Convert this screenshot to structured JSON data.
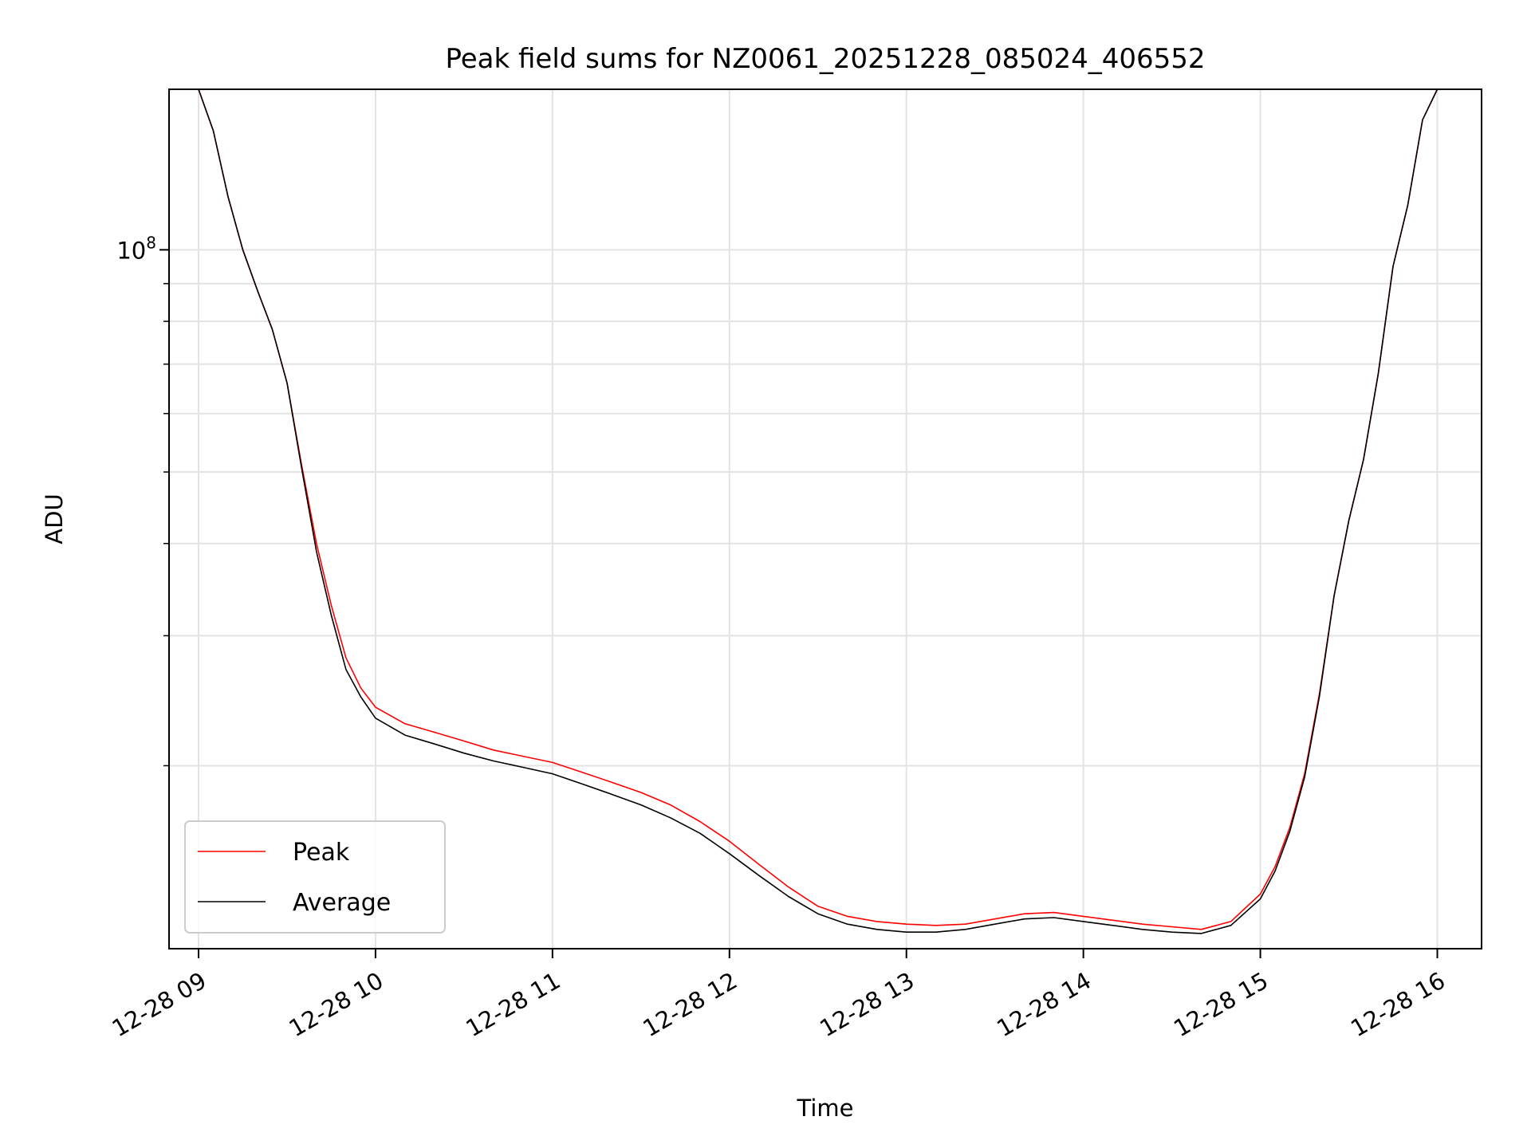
{
  "chart_data": {
    "type": "line",
    "title": "Peak field sums for NZ0061_20251228_085024_406552",
    "xlabel": "Time",
    "ylabel": "ADU",
    "y_scale": "log",
    "y_tick_labels": [
      {
        "base": "10",
        "exp": "8"
      }
    ],
    "x_tick_labels": [
      "12-28 09",
      "12-28 10",
      "12-28 11",
      "12-28 12",
      "12-28 13",
      "12-28 14",
      "12-28 15",
      "12-28 16"
    ],
    "x_tick_rotation_deg": 30,
    "grid": true,
    "legend_position": "lower-left",
    "x_range": [
      "2025-12-28 08:50",
      "2025-12-28 16:15"
    ],
    "ylim": [
      11300000,
      165000000
    ],
    "series": [
      {
        "name": "Peak",
        "color": "#ff0000",
        "points": [
          [
            "2025-12-28 09:00",
            165000000
          ],
          [
            "2025-12-28 09:05",
            145000000
          ],
          [
            "2025-12-28 09:10",
            118000000
          ],
          [
            "2025-12-28 09:15",
            100000000
          ],
          [
            "2025-12-28 09:20",
            88000000
          ],
          [
            "2025-12-28 09:25",
            78000000
          ],
          [
            "2025-12-28 09:30",
            66000000
          ],
          [
            "2025-12-28 09:35",
            51000000
          ],
          [
            "2025-12-28 09:40",
            40000000
          ],
          [
            "2025-12-28 09:45",
            33000000
          ],
          [
            "2025-12-28 09:50",
            28000000
          ],
          [
            "2025-12-28 09:55",
            25500000
          ],
          [
            "2025-12-28 10:00",
            24000000
          ],
          [
            "2025-12-28 10:10",
            22800000
          ],
          [
            "2025-12-28 10:20",
            22200000
          ],
          [
            "2025-12-28 10:30",
            21600000
          ],
          [
            "2025-12-28 10:40",
            21000000
          ],
          [
            "2025-12-28 10:50",
            20600000
          ],
          [
            "2025-12-28 11:00",
            20200000
          ],
          [
            "2025-12-28 11:10",
            19600000
          ],
          [
            "2025-12-28 11:20",
            19000000
          ],
          [
            "2025-12-28 11:30",
            18400000
          ],
          [
            "2025-12-28 11:40",
            17700000
          ],
          [
            "2025-12-28 11:50",
            16800000
          ],
          [
            "2025-12-28 12:00",
            15800000
          ],
          [
            "2025-12-28 12:10",
            14700000
          ],
          [
            "2025-12-28 12:20",
            13700000
          ],
          [
            "2025-12-28 12:30",
            12900000
          ],
          [
            "2025-12-28 12:40",
            12500000
          ],
          [
            "2025-12-28 12:50",
            12300000
          ],
          [
            "2025-12-28 13:00",
            12200000
          ],
          [
            "2025-12-28 13:10",
            12150000
          ],
          [
            "2025-12-28 13:20",
            12200000
          ],
          [
            "2025-12-28 13:30",
            12400000
          ],
          [
            "2025-12-28 13:40",
            12600000
          ],
          [
            "2025-12-28 13:50",
            12650000
          ],
          [
            "2025-12-28 14:00",
            12500000
          ],
          [
            "2025-12-28 14:10",
            12350000
          ],
          [
            "2025-12-28 14:20",
            12200000
          ],
          [
            "2025-12-28 14:30",
            12100000
          ],
          [
            "2025-12-28 14:40",
            12000000
          ],
          [
            "2025-12-28 14:50",
            12300000
          ],
          [
            "2025-12-28 15:00",
            13400000
          ],
          [
            "2025-12-28 15:05",
            14600000
          ],
          [
            "2025-12-28 15:10",
            16500000
          ],
          [
            "2025-12-28 15:15",
            19500000
          ],
          [
            "2025-12-28 15:20",
            25000000
          ],
          [
            "2025-12-28 15:25",
            34000000
          ],
          [
            "2025-12-28 15:30",
            43000000
          ],
          [
            "2025-12-28 15:35",
            52000000
          ],
          [
            "2025-12-28 15:40",
            68000000
          ],
          [
            "2025-12-28 15:45",
            95000000
          ],
          [
            "2025-12-28 15:50",
            115000000
          ],
          [
            "2025-12-28 15:55",
            150000000
          ],
          [
            "2025-12-28 16:00",
            165000000
          ]
        ]
      },
      {
        "name": "Average",
        "color": "#000000",
        "points": [
          [
            "2025-12-28 09:00",
            165000000
          ],
          [
            "2025-12-28 09:05",
            145000000
          ],
          [
            "2025-12-28 09:10",
            118000000
          ],
          [
            "2025-12-28 09:15",
            100000000
          ],
          [
            "2025-12-28 09:20",
            88000000
          ],
          [
            "2025-12-28 09:25",
            78000000
          ],
          [
            "2025-12-28 09:30",
            66000000
          ],
          [
            "2025-12-28 09:35",
            50500000
          ],
          [
            "2025-12-28 09:40",
            39000000
          ],
          [
            "2025-12-28 09:45",
            32000000
          ],
          [
            "2025-12-28 09:50",
            27000000
          ],
          [
            "2025-12-28 09:55",
            24800000
          ],
          [
            "2025-12-28 10:00",
            23200000
          ],
          [
            "2025-12-28 10:10",
            22000000
          ],
          [
            "2025-12-28 10:20",
            21400000
          ],
          [
            "2025-12-28 10:30",
            20800000
          ],
          [
            "2025-12-28 10:40",
            20300000
          ],
          [
            "2025-12-28 10:50",
            19900000
          ],
          [
            "2025-12-28 11:00",
            19500000
          ],
          [
            "2025-12-28 11:10",
            18900000
          ],
          [
            "2025-12-28 11:20",
            18300000
          ],
          [
            "2025-12-28 11:30",
            17700000
          ],
          [
            "2025-12-28 11:40",
            17000000
          ],
          [
            "2025-12-28 11:50",
            16200000
          ],
          [
            "2025-12-28 12:00",
            15200000
          ],
          [
            "2025-12-28 12:10",
            14200000
          ],
          [
            "2025-12-28 12:20",
            13300000
          ],
          [
            "2025-12-28 12:30",
            12600000
          ],
          [
            "2025-12-28 12:40",
            12200000
          ],
          [
            "2025-12-28 12:50",
            12000000
          ],
          [
            "2025-12-28 13:00",
            11900000
          ],
          [
            "2025-12-28 13:10",
            11900000
          ],
          [
            "2025-12-28 13:20",
            12000000
          ],
          [
            "2025-12-28 13:30",
            12200000
          ],
          [
            "2025-12-28 13:40",
            12400000
          ],
          [
            "2025-12-28 13:50",
            12450000
          ],
          [
            "2025-12-28 14:00",
            12300000
          ],
          [
            "2025-12-28 14:10",
            12150000
          ],
          [
            "2025-12-28 14:20",
            12000000
          ],
          [
            "2025-12-28 14:30",
            11900000
          ],
          [
            "2025-12-28 14:40",
            11850000
          ],
          [
            "2025-12-28 14:50",
            12150000
          ],
          [
            "2025-12-28 15:00",
            13200000
          ],
          [
            "2025-12-28 15:05",
            14400000
          ],
          [
            "2025-12-28 15:10",
            16300000
          ],
          [
            "2025-12-28 15:15",
            19300000
          ],
          [
            "2025-12-28 15:20",
            24800000
          ],
          [
            "2025-12-28 15:25",
            34000000
          ],
          [
            "2025-12-28 15:30",
            43000000
          ],
          [
            "2025-12-28 15:35",
            52000000
          ],
          [
            "2025-12-28 15:40",
            68000000
          ],
          [
            "2025-12-28 15:45",
            95000000
          ],
          [
            "2025-12-28 15:50",
            115000000
          ],
          [
            "2025-12-28 15:55",
            150000000
          ],
          [
            "2025-12-28 16:00",
            165000000
          ]
        ]
      }
    ]
  }
}
